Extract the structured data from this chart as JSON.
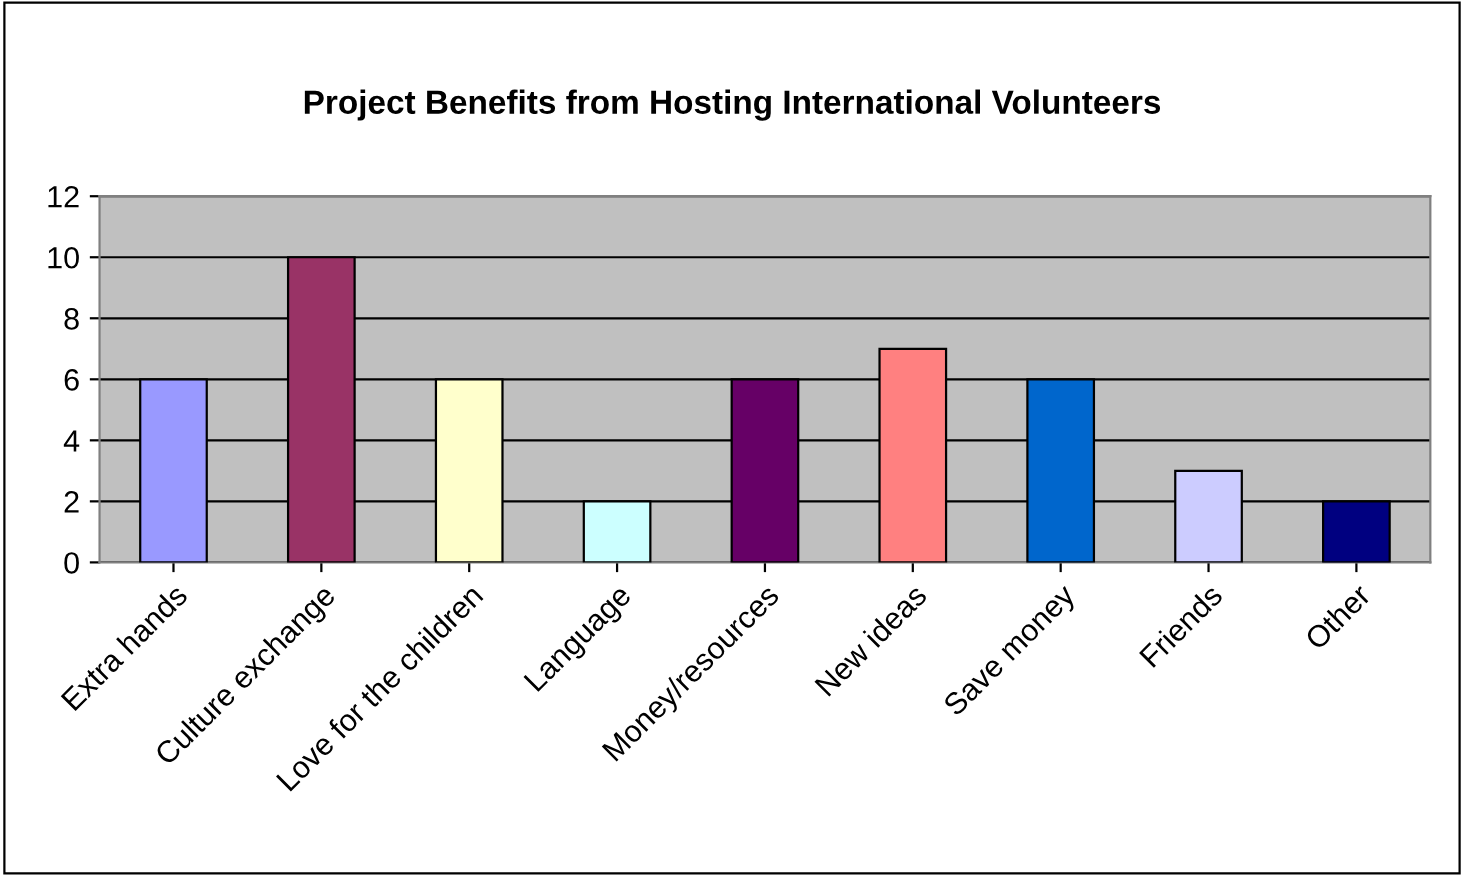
{
  "chart_data": {
    "type": "bar",
    "title": "Project Benefits from Hosting International Volunteers",
    "categories": [
      "Extra hands",
      "Culture exchange",
      "Love for the children",
      "Language",
      "Money/resources",
      "New ideas",
      "Save money",
      "Friends",
      "Other"
    ],
    "values": [
      6,
      10,
      6,
      2,
      6,
      7,
      6,
      3,
      2
    ],
    "colors": [
      "#9999ff",
      "#993366",
      "#ffffcc",
      "#ccffff",
      "#660066",
      "#ff8080",
      "#0066cc",
      "#ccccff",
      "#000080"
    ],
    "ylim": [
      0,
      12
    ],
    "yticks": [
      0,
      2,
      4,
      6,
      8,
      10,
      12
    ],
    "grid": "y",
    "legend": false
  }
}
